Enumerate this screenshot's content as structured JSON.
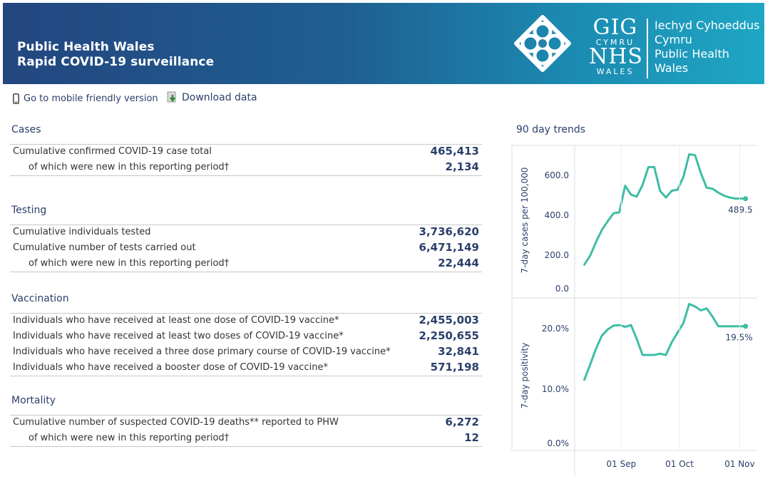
{
  "header": {
    "line1": "Public Health Wales",
    "line2": "Rapid COVID-19 surveillance",
    "logo_big_1": "GIG",
    "logo_small_1": "CYMRU",
    "logo_big_2": "NHS",
    "logo_small_2": "WALES",
    "welsh_1": "Iechyd Cyhoeddus",
    "welsh_2": "Cymru",
    "english_1": "Public Health",
    "english_2": "Wales"
  },
  "toolbar": {
    "mobile_label": "Go to mobile friendly version",
    "download_label": "Download data"
  },
  "sections": {
    "cases": {
      "title": "Cases",
      "rows": [
        {
          "label": "Cumulative confirmed COVID-19 case total",
          "value": "465,413"
        },
        {
          "label": "of which were new in this reporting period†",
          "value": "2,134"
        }
      ]
    },
    "testing": {
      "title": "Testing",
      "rows": [
        {
          "label": "Cumulative individuals tested",
          "value": "3,736,620"
        },
        {
          "label": "Cumulative number of tests carried out",
          "value": "6,471,149"
        },
        {
          "label": "of which were new in this reporting period†",
          "value": "22,444"
        }
      ]
    },
    "vaccination": {
      "title": "Vaccination",
      "rows": [
        {
          "label": "Individuals who have received at least one dose of COVID-19 vaccine*",
          "value": "2,455,003"
        },
        {
          "label": "Individuals who have received at least two doses of COVID-19 vaccine*",
          "value": "2,250,655"
        },
        {
          "label": "Individuals who have received a three dose primary course of COVID-19 vaccine*",
          "value": "32,841"
        },
        {
          "label": "Individuals who have received a booster dose of COVID-19 vaccine*",
          "value": "571,198"
        }
      ]
    },
    "mortality": {
      "title": "Mortality",
      "rows": [
        {
          "label": "Cumulative number of suspected COVID-19 deaths** reported to PHW",
          "value": "6,272"
        },
        {
          "label": "of which were new in this reporting period†",
          "value": "12"
        }
      ]
    }
  },
  "trends": {
    "title": "90 day trends"
  },
  "colors": {
    "line": "#3dbda5",
    "accent_text": "#2a3f6a"
  },
  "chart_data": [
    {
      "type": "line",
      "ylabel": "7-day cases per 100,000",
      "yticks": [
        "0.0",
        "200.0",
        "400.0",
        "600.0"
      ],
      "ylim": [
        0,
        760
      ],
      "end_label": "489.5",
      "x": [
        "2021-08-13",
        "2021-08-16",
        "2021-08-19",
        "2021-08-22",
        "2021-08-25",
        "2021-08-28",
        "2021-08-31",
        "2021-09-03",
        "2021-09-06",
        "2021-09-09",
        "2021-09-12",
        "2021-09-15",
        "2021-09-18",
        "2021-09-21",
        "2021-09-24",
        "2021-09-27",
        "2021-09-30",
        "2021-10-03",
        "2021-10-06",
        "2021-10-09",
        "2021-10-12",
        "2021-10-15",
        "2021-10-18",
        "2021-10-21",
        "2021-10-24",
        "2021-10-27",
        "2021-10-30",
        "2021-11-02",
        "2021-11-04"
      ],
      "values": [
        155,
        200,
        270,
        330,
        375,
        415,
        420,
        555,
        510,
        500,
        560,
        650,
        650,
        530,
        495,
        530,
        535,
        600,
        715,
        710,
        620,
        545,
        540,
        520,
        505,
        495,
        490,
        490,
        489.5
      ],
      "xtick_labels": [
        "01 Sep",
        "01 Oct",
        "01 Nov"
      ],
      "xtick_dates": [
        "2021-09-01",
        "2021-10-01",
        "2021-11-01"
      ]
    },
    {
      "type": "line",
      "ylabel": "7-day positivity",
      "yticks": [
        "0.0%",
        "10.0%",
        "20.0%"
      ],
      "ylim": [
        0,
        23.5
      ],
      "end_label": "19.5%",
      "x": [
        "2021-08-13",
        "2021-08-16",
        "2021-08-19",
        "2021-08-22",
        "2021-08-25",
        "2021-08-28",
        "2021-08-31",
        "2021-09-03",
        "2021-09-06",
        "2021-09-09",
        "2021-09-12",
        "2021-09-15",
        "2021-09-18",
        "2021-09-21",
        "2021-09-24",
        "2021-09-27",
        "2021-09-30",
        "2021-10-03",
        "2021-10-06",
        "2021-10-09",
        "2021-10-12",
        "2021-10-15",
        "2021-10-18",
        "2021-10-21",
        "2021-10-24",
        "2021-10-27",
        "2021-10-30",
        "2021-11-02",
        "2021-11-04"
      ],
      "values": [
        11.1,
        13.5,
        16.0,
        18.0,
        19.0,
        19.6,
        19.7,
        19.4,
        19.7,
        17.5,
        15.0,
        15.0,
        15.0,
        15.2,
        15.0,
        17.0,
        18.5,
        20.0,
        23.0,
        22.6,
        22.0,
        22.3,
        21.0,
        19.5,
        19.5,
        19.5,
        19.5,
        19.5,
        19.5
      ]
    }
  ]
}
